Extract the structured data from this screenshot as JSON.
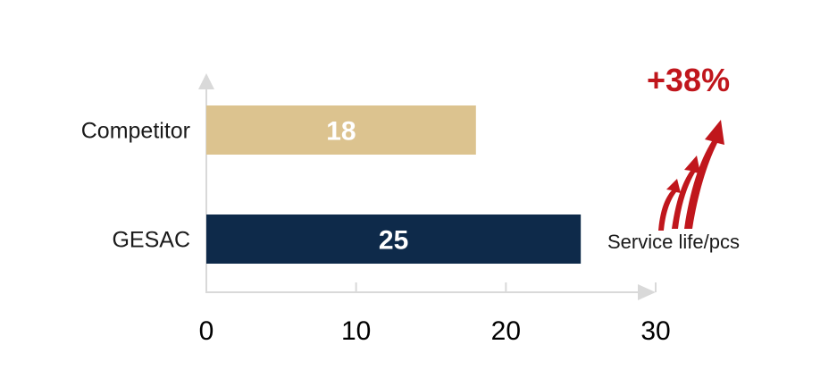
{
  "chart_data": {
    "type": "bar",
    "orientation": "horizontal",
    "categories": [
      "Competitor",
      "GESAC"
    ],
    "values": [
      18,
      25
    ],
    "data_labels": [
      "18",
      "25"
    ],
    "colors": [
      "#dcc38f",
      "#0e2a4a"
    ],
    "xlabel": "Service life/pcs",
    "xlim": [
      0,
      30
    ],
    "xticks": [
      0,
      10,
      20,
      30
    ],
    "xtick_labels": [
      "0",
      "10",
      "20",
      "30"
    ],
    "grid": false,
    "annotations": [
      {
        "text": "+38%",
        "color": "#c0161c"
      }
    ]
  },
  "colors": {
    "axis": "#d9d9d9",
    "accent_red": "#c0161c"
  }
}
